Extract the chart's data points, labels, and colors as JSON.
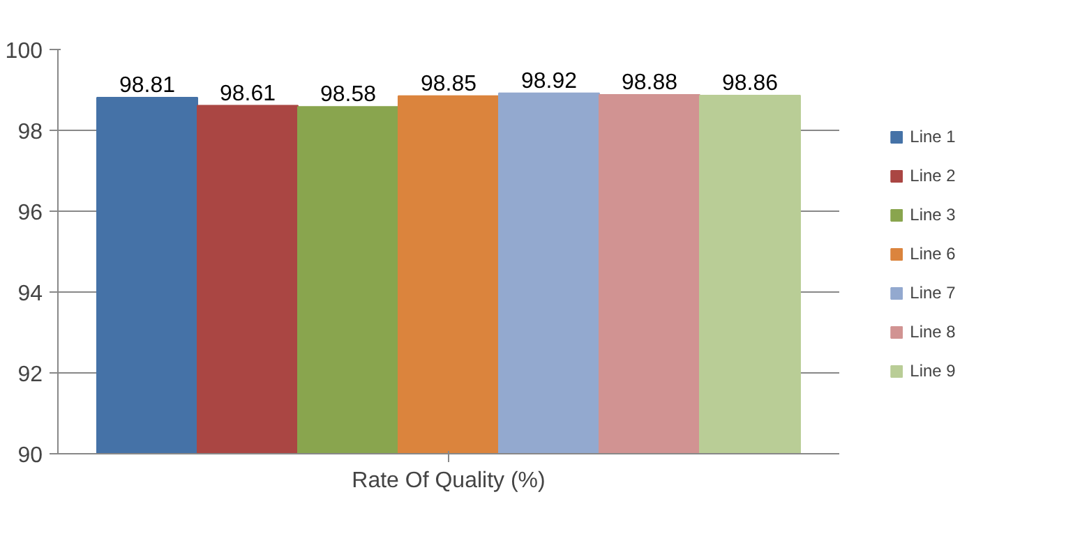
{
  "chart_data": {
    "type": "bar",
    "xlabel": "Rate Of Quality (%)",
    "categories": [
      null
    ],
    "series": [
      {
        "name": "Line 1",
        "color": "#4572a7",
        "values": [
          98.81
        ]
      },
      {
        "name": "Line 2",
        "color": "#aa4643",
        "values": [
          98.61
        ]
      },
      {
        "name": "Line 3",
        "color": "#89a54e",
        "values": [
          98.58
        ]
      },
      {
        "name": "Line 6",
        "color": "#db843d",
        "values": [
          98.85
        ]
      },
      {
        "name": "Line 7",
        "color": "#93a9cf",
        "values": [
          98.92
        ]
      },
      {
        "name": "Line 8",
        "color": "#d19392",
        "values": [
          98.88
        ]
      },
      {
        "name": "Line 9",
        "color": "#b9cd96",
        "values": [
          98.86
        ]
      }
    ],
    "ylim": [
      90,
      100
    ],
    "yticks": [
      90,
      92,
      94,
      96,
      98,
      100
    ],
    "grid": "y",
    "legend": "right",
    "data_labels": true
  }
}
